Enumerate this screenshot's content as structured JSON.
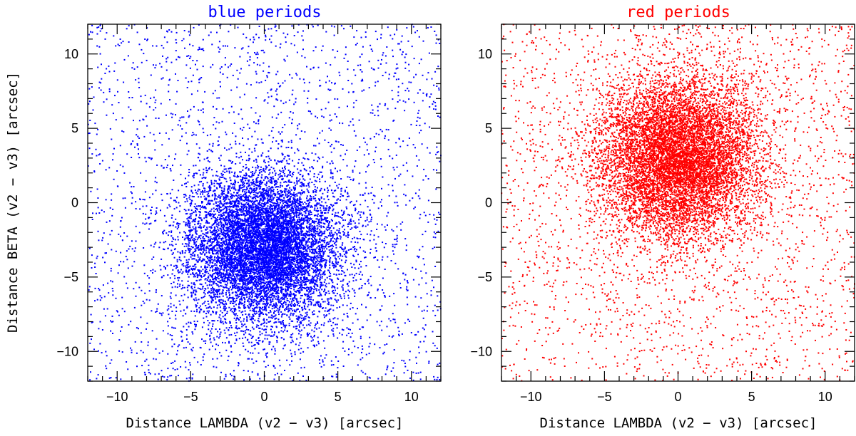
{
  "chart_data": [
    {
      "type": "scatter",
      "title": "blue periods",
      "color": "#0000ff",
      "xlabel": "Distance LAMBDA (v2 − v3) [arcsec]",
      "ylabel": "Distance BETA (v2 − v3) [arcsec]",
      "xlim": [
        -12,
        12
      ],
      "ylim": [
        -12,
        12
      ],
      "xticks": [
        -10,
        -5,
        0,
        5,
        10
      ],
      "yticks": [
        -10,
        -5,
        0,
        5,
        10
      ],
      "xtick_labels": [
        "−10",
        "−5",
        "0",
        "5",
        "10"
      ],
      "ytick_labels": [
        "−10",
        "−5",
        "0",
        "5",
        "10"
      ],
      "cluster_center": [
        0,
        -3
      ],
      "cluster_sigma": 2.6,
      "core_points": 9000,
      "background_points": 2200,
      "seed": 11
    },
    {
      "type": "scatter",
      "title": "red periods",
      "color": "#ff0000",
      "xlabel": "Distance LAMBDA (v2 − v3) [arcsec]",
      "ylabel": "",
      "xlim": [
        -12,
        12
      ],
      "ylim": [
        -12,
        12
      ],
      "xticks": [
        -10,
        -5,
        0,
        5,
        10
      ],
      "yticks": [
        -10,
        -5,
        0,
        5,
        10
      ],
      "xtick_labels": [
        "−10",
        "−5",
        "0",
        "5",
        "10"
      ],
      "ytick_labels": [
        "−10",
        "−5",
        "0",
        "5",
        "10"
      ],
      "cluster_center": [
        0,
        3
      ],
      "cluster_sigma": 2.8,
      "core_points": 9000,
      "background_points": 2200,
      "seed": 29
    }
  ]
}
